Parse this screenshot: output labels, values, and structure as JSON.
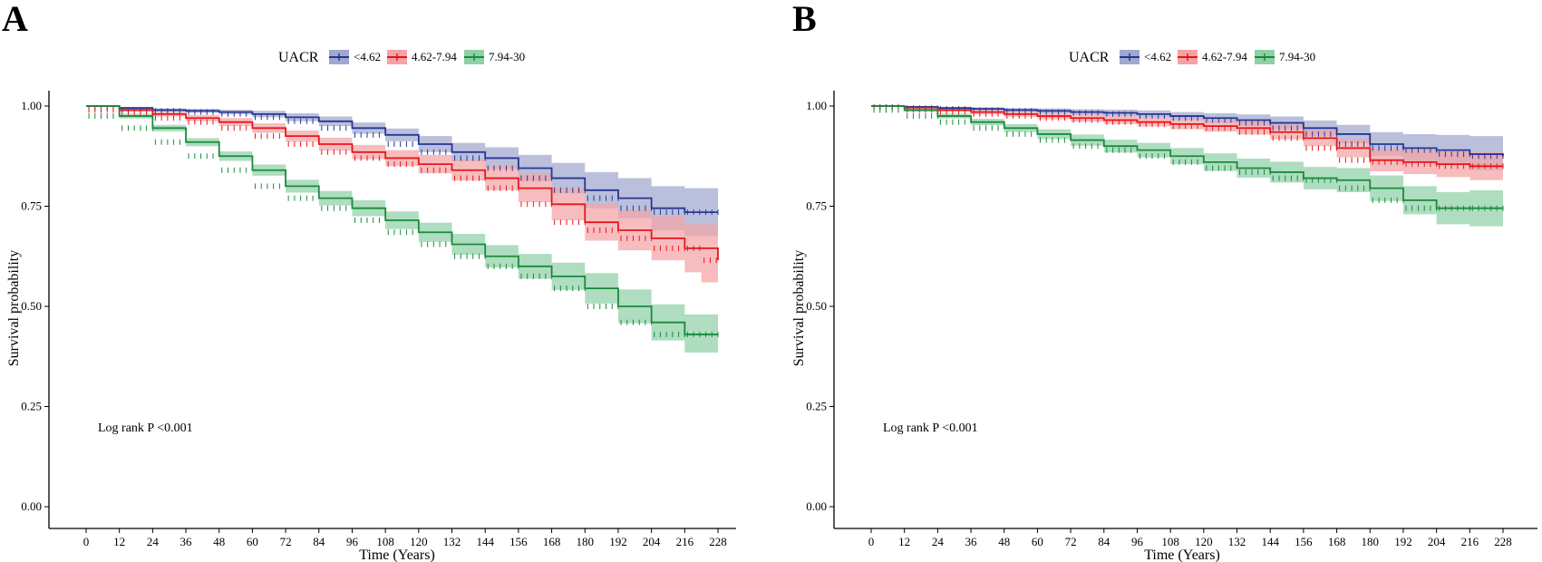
{
  "figure": {
    "colors": {
      "blue": "#283593",
      "red": "#e8151b",
      "green": "#1a8a3c",
      "blue_band": "#9fa8cf",
      "red_band": "#f4a3a5",
      "green_band": "#8fd0a6"
    },
    "icons": {
      "legend_key": "line-with-cross-mark"
    }
  },
  "chart_data": [
    {
      "panel": "A",
      "type": "line",
      "subtype": "kaplan-meier-step",
      "title": "",
      "xlabel": "Time (Years)",
      "ylabel": "Survival probability",
      "xlim": [
        0,
        228
      ],
      "ylim": [
        0,
        1
      ],
      "x_ticks": [
        0,
        12,
        24,
        36,
        48,
        60,
        72,
        84,
        96,
        108,
        120,
        132,
        144,
        156,
        168,
        180,
        192,
        204,
        216,
        228
      ],
      "y_ticks": [
        "0.00",
        "0.25",
        "0.50",
        "0.75",
        "1.00"
      ],
      "legend": {
        "title": "UACR",
        "position": "top"
      },
      "annotation": "Log rank P <0.001",
      "series": [
        {
          "name": "<4.62",
          "color": "#283593",
          "band": "#9fa8cf",
          "x": [
            0,
            12,
            24,
            36,
            48,
            60,
            72,
            84,
            96,
            108,
            120,
            132,
            144,
            156,
            168,
            180,
            192,
            204,
            216,
            228
          ],
          "y": [
            1.0,
            0.995,
            0.99,
            0.988,
            0.985,
            0.98,
            0.972,
            0.962,
            0.945,
            0.928,
            0.905,
            0.885,
            0.87,
            0.845,
            0.82,
            0.79,
            0.77,
            0.745,
            0.735,
            0.735
          ],
          "ci_lower": [
            1.0,
            0.992,
            0.986,
            0.983,
            0.979,
            0.972,
            0.962,
            0.95,
            0.931,
            0.912,
            0.885,
            0.862,
            0.843,
            0.812,
            0.782,
            0.745,
            0.72,
            0.69,
            0.675,
            0.67
          ],
          "ci_upper": [
            1.0,
            0.998,
            0.994,
            0.993,
            0.991,
            0.988,
            0.982,
            0.974,
            0.959,
            0.944,
            0.925,
            0.908,
            0.897,
            0.878,
            0.858,
            0.835,
            0.82,
            0.8,
            0.795,
            0.8
          ]
        },
        {
          "name": "4.62-7.94",
          "color": "#e8151b",
          "band": "#f4a3a5",
          "x": [
            0,
            12,
            24,
            36,
            48,
            60,
            72,
            84,
            96,
            108,
            120,
            132,
            144,
            156,
            168,
            180,
            192,
            204,
            216,
            222,
            228
          ],
          "y": [
            1.0,
            0.99,
            0.98,
            0.97,
            0.96,
            0.945,
            0.925,
            0.905,
            0.885,
            0.87,
            0.855,
            0.84,
            0.82,
            0.795,
            0.755,
            0.71,
            0.69,
            0.67,
            0.645,
            0.645,
            0.615
          ],
          "ci_lower": [
            1.0,
            0.986,
            0.974,
            0.962,
            0.95,
            0.933,
            0.911,
            0.889,
            0.867,
            0.85,
            0.832,
            0.814,
            0.79,
            0.76,
            0.715,
            0.664,
            0.64,
            0.615,
            0.585,
            0.56,
            0.545
          ],
          "ci_upper": [
            1.0,
            0.994,
            0.986,
            0.978,
            0.97,
            0.957,
            0.939,
            0.921,
            0.903,
            0.89,
            0.878,
            0.866,
            0.85,
            0.83,
            0.795,
            0.756,
            0.74,
            0.725,
            0.705,
            0.705,
            0.695
          ]
        },
        {
          "name": "7.94-30",
          "color": "#1a8a3c",
          "band": "#8fd0a6",
          "x": [
            0,
            12,
            24,
            36,
            48,
            60,
            72,
            84,
            96,
            108,
            120,
            132,
            144,
            156,
            168,
            180,
            192,
            204,
            216,
            228
          ],
          "y": [
            1.0,
            0.975,
            0.945,
            0.91,
            0.875,
            0.84,
            0.8,
            0.77,
            0.745,
            0.715,
            0.685,
            0.655,
            0.625,
            0.6,
            0.575,
            0.545,
            0.5,
            0.46,
            0.43,
            0.43
          ],
          "ci_lower": [
            1.0,
            0.969,
            0.937,
            0.9,
            0.863,
            0.826,
            0.784,
            0.752,
            0.725,
            0.693,
            0.661,
            0.629,
            0.597,
            0.569,
            0.541,
            0.507,
            0.458,
            0.415,
            0.385,
            0.38
          ],
          "ci_upper": [
            1.0,
            0.981,
            0.953,
            0.92,
            0.887,
            0.854,
            0.816,
            0.788,
            0.765,
            0.737,
            0.709,
            0.681,
            0.653,
            0.631,
            0.609,
            0.583,
            0.542,
            0.505,
            0.48,
            0.485
          ]
        }
      ]
    },
    {
      "panel": "B",
      "type": "line",
      "subtype": "kaplan-meier-step",
      "title": "",
      "xlabel": "Time (Years)",
      "ylabel": "Survival probability",
      "xlim": [
        0,
        228
      ],
      "ylim": [
        0,
        1
      ],
      "x_ticks": [
        0,
        12,
        24,
        36,
        48,
        60,
        72,
        84,
        96,
        108,
        120,
        132,
        144,
        156,
        168,
        180,
        192,
        204,
        216,
        228
      ],
      "y_ticks": [
        "0.00",
        "0.25",
        "0.50",
        "0.75",
        "1.00"
      ],
      "legend": {
        "title": "UACR",
        "position": "top"
      },
      "annotation": "Log rank P <0.001",
      "series": [
        {
          "name": "<4.62",
          "color": "#283593",
          "band": "#9fa8cf",
          "x": [
            0,
            12,
            24,
            36,
            48,
            60,
            72,
            84,
            96,
            108,
            120,
            132,
            144,
            156,
            168,
            180,
            192,
            204,
            216,
            228
          ],
          "y": [
            1.0,
            0.998,
            0.995,
            0.993,
            0.99,
            0.988,
            0.985,
            0.983,
            0.98,
            0.975,
            0.97,
            0.965,
            0.958,
            0.945,
            0.93,
            0.905,
            0.895,
            0.89,
            0.88,
            0.875
          ],
          "ci_lower": [
            1.0,
            0.996,
            0.992,
            0.989,
            0.985,
            0.982,
            0.978,
            0.975,
            0.971,
            0.965,
            0.958,
            0.951,
            0.942,
            0.926,
            0.907,
            0.875,
            0.86,
            0.852,
            0.84,
            0.83
          ],
          "ci_upper": [
            1.0,
            1.0,
            0.998,
            0.997,
            0.995,
            0.994,
            0.992,
            0.991,
            0.989,
            0.985,
            0.982,
            0.979,
            0.974,
            0.964,
            0.953,
            0.935,
            0.93,
            0.928,
            0.925,
            0.93
          ]
        },
        {
          "name": "4.62-7.94",
          "color": "#e8151b",
          "band": "#f4a3a5",
          "x": [
            0,
            12,
            24,
            36,
            48,
            60,
            72,
            84,
            96,
            108,
            120,
            132,
            144,
            156,
            168,
            180,
            192,
            204,
            216,
            228
          ],
          "y": [
            1.0,
            0.996,
            0.99,
            0.985,
            0.98,
            0.975,
            0.97,
            0.965,
            0.96,
            0.955,
            0.95,
            0.945,
            0.935,
            0.92,
            0.895,
            0.865,
            0.86,
            0.855,
            0.85,
            0.85
          ],
          "ci_lower": [
            1.0,
            0.993,
            0.986,
            0.979,
            0.973,
            0.967,
            0.961,
            0.955,
            0.949,
            0.942,
            0.936,
            0.929,
            0.917,
            0.9,
            0.872,
            0.837,
            0.83,
            0.823,
            0.815,
            0.81
          ],
          "ci_upper": [
            1.0,
            0.999,
            0.994,
            0.991,
            0.987,
            0.983,
            0.979,
            0.975,
            0.971,
            0.968,
            0.964,
            0.961,
            0.953,
            0.94,
            0.918,
            0.893,
            0.89,
            0.887,
            0.885,
            0.89
          ]
        },
        {
          "name": "7.94-30",
          "color": "#1a8a3c",
          "band": "#8fd0a6",
          "x": [
            0,
            12,
            24,
            36,
            48,
            60,
            72,
            84,
            96,
            108,
            120,
            132,
            144,
            156,
            168,
            180,
            192,
            204,
            216,
            228
          ],
          "y": [
            1.0,
            0.99,
            0.975,
            0.96,
            0.945,
            0.93,
            0.915,
            0.9,
            0.89,
            0.875,
            0.86,
            0.845,
            0.835,
            0.82,
            0.815,
            0.795,
            0.765,
            0.745,
            0.745,
            0.745
          ],
          "ci_lower": [
            1.0,
            0.986,
            0.969,
            0.952,
            0.935,
            0.918,
            0.901,
            0.884,
            0.872,
            0.855,
            0.838,
            0.821,
            0.809,
            0.792,
            0.785,
            0.763,
            0.73,
            0.705,
            0.7,
            0.695
          ],
          "ci_upper": [
            1.0,
            0.994,
            0.981,
            0.968,
            0.955,
            0.942,
            0.929,
            0.916,
            0.908,
            0.895,
            0.882,
            0.869,
            0.861,
            0.848,
            0.845,
            0.827,
            0.8,
            0.785,
            0.79,
            0.795
          ]
        }
      ]
    }
  ]
}
